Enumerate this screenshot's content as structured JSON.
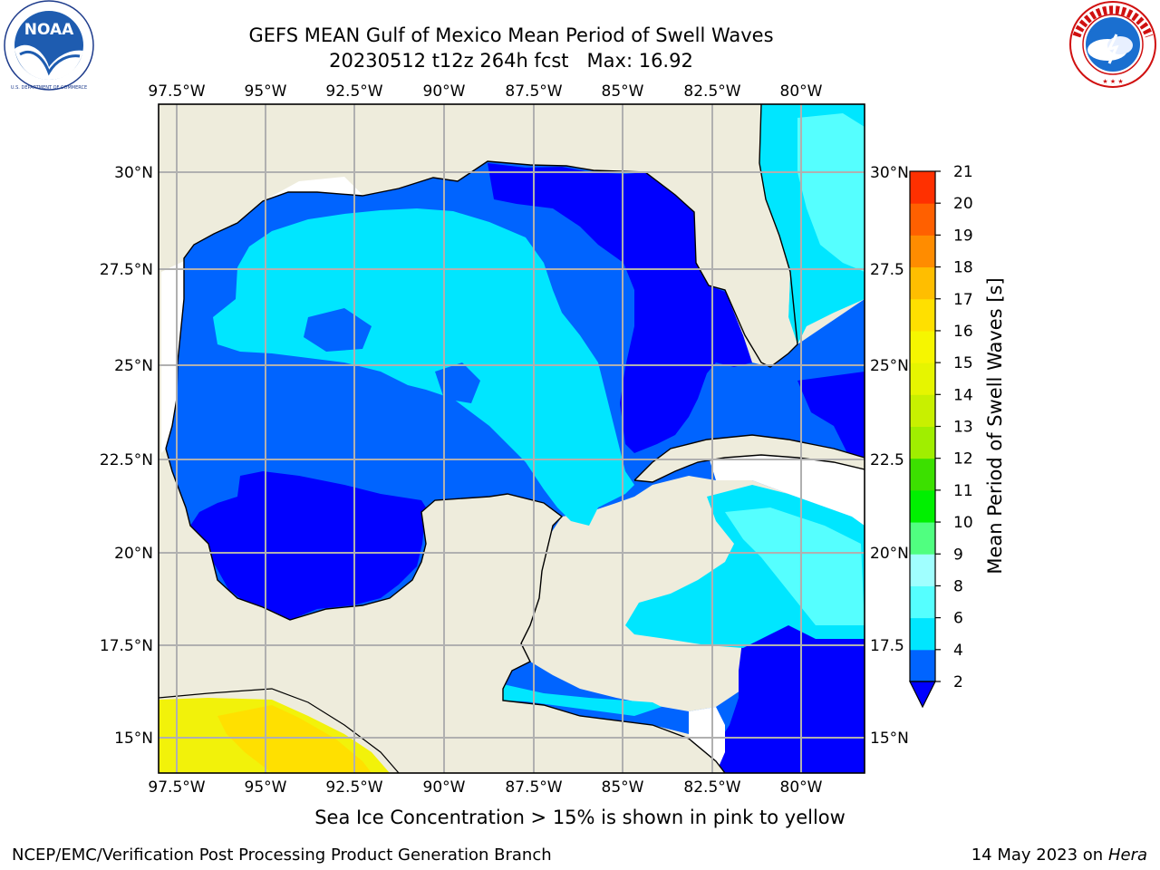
{
  "header": {
    "title_line1": "GEFS MEAN Gulf of Mexico Mean Period of Swell Waves",
    "title_run": "20230512 t12z 264h fcst",
    "title_max": "Max: 16.92"
  },
  "logos": {
    "left": {
      "icon": "noaa-logo",
      "text": "NOAA",
      "ring_text": "NATIONAL OCEANIC AND ATMOSPHERIC ADMINISTRATION · U.S. DEPARTMENT OF COMMERCE"
    },
    "right": {
      "icon": "nws-logo",
      "ring_text": "NATIONAL WEATHER SERVICE"
    }
  },
  "map": {
    "lon_labels": [
      "97.5°W",
      "95°W",
      "92.5°W",
      "90°W",
      "87.5°W",
      "85°W",
      "82.5°W",
      "80°W"
    ],
    "lat_labels_left": [
      "30°N",
      "27.5°N",
      "25°N",
      "22.5°N",
      "20°N",
      "17.5°N",
      "15°N"
    ],
    "lat_labels_right": [
      "30°N",
      "27.5",
      "25°N",
      "22.5",
      "20°N",
      "17.5",
      "15°N"
    ],
    "colors": {
      "land": "#eeecdc",
      "grid": "#b0b0b0",
      "coast": "#000000",
      "swell_2_4": "#0064ff",
      "swell_lt2": "#0000ff",
      "swell_4_6": "#00e6ff",
      "swell_6_8": "#55ffff",
      "ice_yellow": "#f2f20a",
      "ice_gold": "#ffe000"
    }
  },
  "colorbar": {
    "label": "Mean Period of Swell Waves [s]",
    "ticks": [
      "2",
      "4",
      "6",
      "8",
      "9",
      "10",
      "11",
      "12",
      "13",
      "14",
      "15",
      "16",
      "17",
      "18",
      "19",
      "20",
      "21"
    ],
    "colors": [
      "#0064ff",
      "#00e6ff",
      "#55ffff",
      "#a0ffff",
      "#50ff80",
      "#00f000",
      "#3ce000",
      "#a0ee00",
      "#c8f000",
      "#e6f500",
      "#f6f600",
      "#ffe000",
      "#ffbe00",
      "#ff8c00",
      "#ff6000",
      "#ff3000",
      "#ff0000"
    ],
    "extend_color": "#0000ff"
  },
  "footer": {
    "seaice_note": "Sea Ice Concentration > 15% is shown in pink to yellow",
    "credit": "NCEP/EMC/Verification Post Processing Product Generation Branch",
    "date": "14 May 2023 on",
    "machine": "Hera"
  }
}
